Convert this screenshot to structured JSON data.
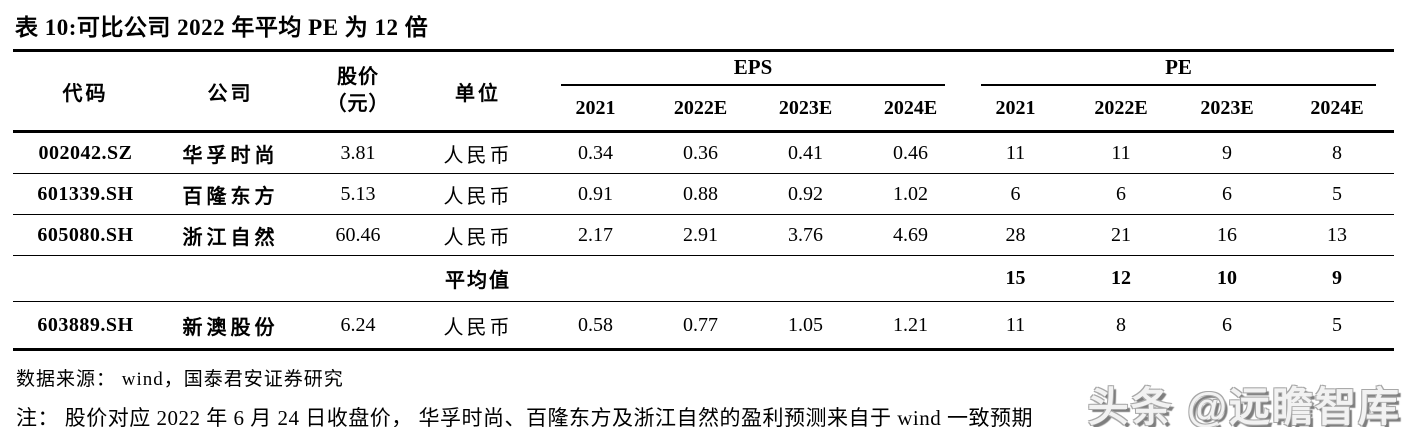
{
  "title": "表 10:可比公司 2022 年平均 PE 为 12 倍",
  "table": {
    "col_headers": {
      "code": "代码",
      "company": "公司",
      "price_line1": "股价",
      "price_line2": "（元）",
      "unit": "单位",
      "eps_group": "EPS",
      "pe_group": "PE",
      "eps_years": [
        "2021",
        "2022E",
        "2023E",
        "2024E"
      ],
      "pe_years": [
        "2021",
        "2022E",
        "2023E",
        "2024E"
      ]
    },
    "rows": [
      {
        "code": "002042.SZ",
        "company": "华孚时尚",
        "price": "3.81",
        "unit": "人民币",
        "eps": [
          "0.34",
          "0.36",
          "0.41",
          "0.46"
        ],
        "pe": [
          "11",
          "11",
          "9",
          "8"
        ]
      },
      {
        "code": "601339.SH",
        "company": "百隆东方",
        "price": "5.13",
        "unit": "人民币",
        "eps": [
          "0.91",
          "0.88",
          "0.92",
          "1.02"
        ],
        "pe": [
          "6",
          "6",
          "6",
          "5"
        ]
      },
      {
        "code": "605080.SH",
        "company": "浙江自然",
        "price": "60.46",
        "unit": "人民币",
        "eps": [
          "2.17",
          "2.91",
          "3.76",
          "4.69"
        ],
        "pe": [
          "28",
          "21",
          "16",
          "13"
        ]
      },
      {
        "code": "",
        "company": "",
        "price": "",
        "unit": "平均值",
        "eps": [
          "",
          "",
          "",
          ""
        ],
        "pe": [
          "15",
          "12",
          "10",
          "9"
        ]
      },
      {
        "code": "603889.SH",
        "company": "新澳股份",
        "price": "6.24",
        "unit": "人民币",
        "eps": [
          "0.58",
          "0.77",
          "1.05",
          "1.21"
        ],
        "pe": [
          "11",
          "8",
          "6",
          "5"
        ]
      }
    ]
  },
  "footer": {
    "source": "数据来源： wind，国泰君安证券研究",
    "note": "注： 股价对应 2022 年 6 月 24 日收盘价， 华孚时尚、百隆东方及浙江自然的盈利预测来自于 wind 一致预期"
  },
  "watermark": "头条 @远瞻智库",
  "colors": {
    "text": "#000000",
    "background": "#ffffff",
    "watermark_shadow": "#7e7e7e",
    "watermark_fill": "#f2f2f2",
    "rule": "#000000"
  }
}
